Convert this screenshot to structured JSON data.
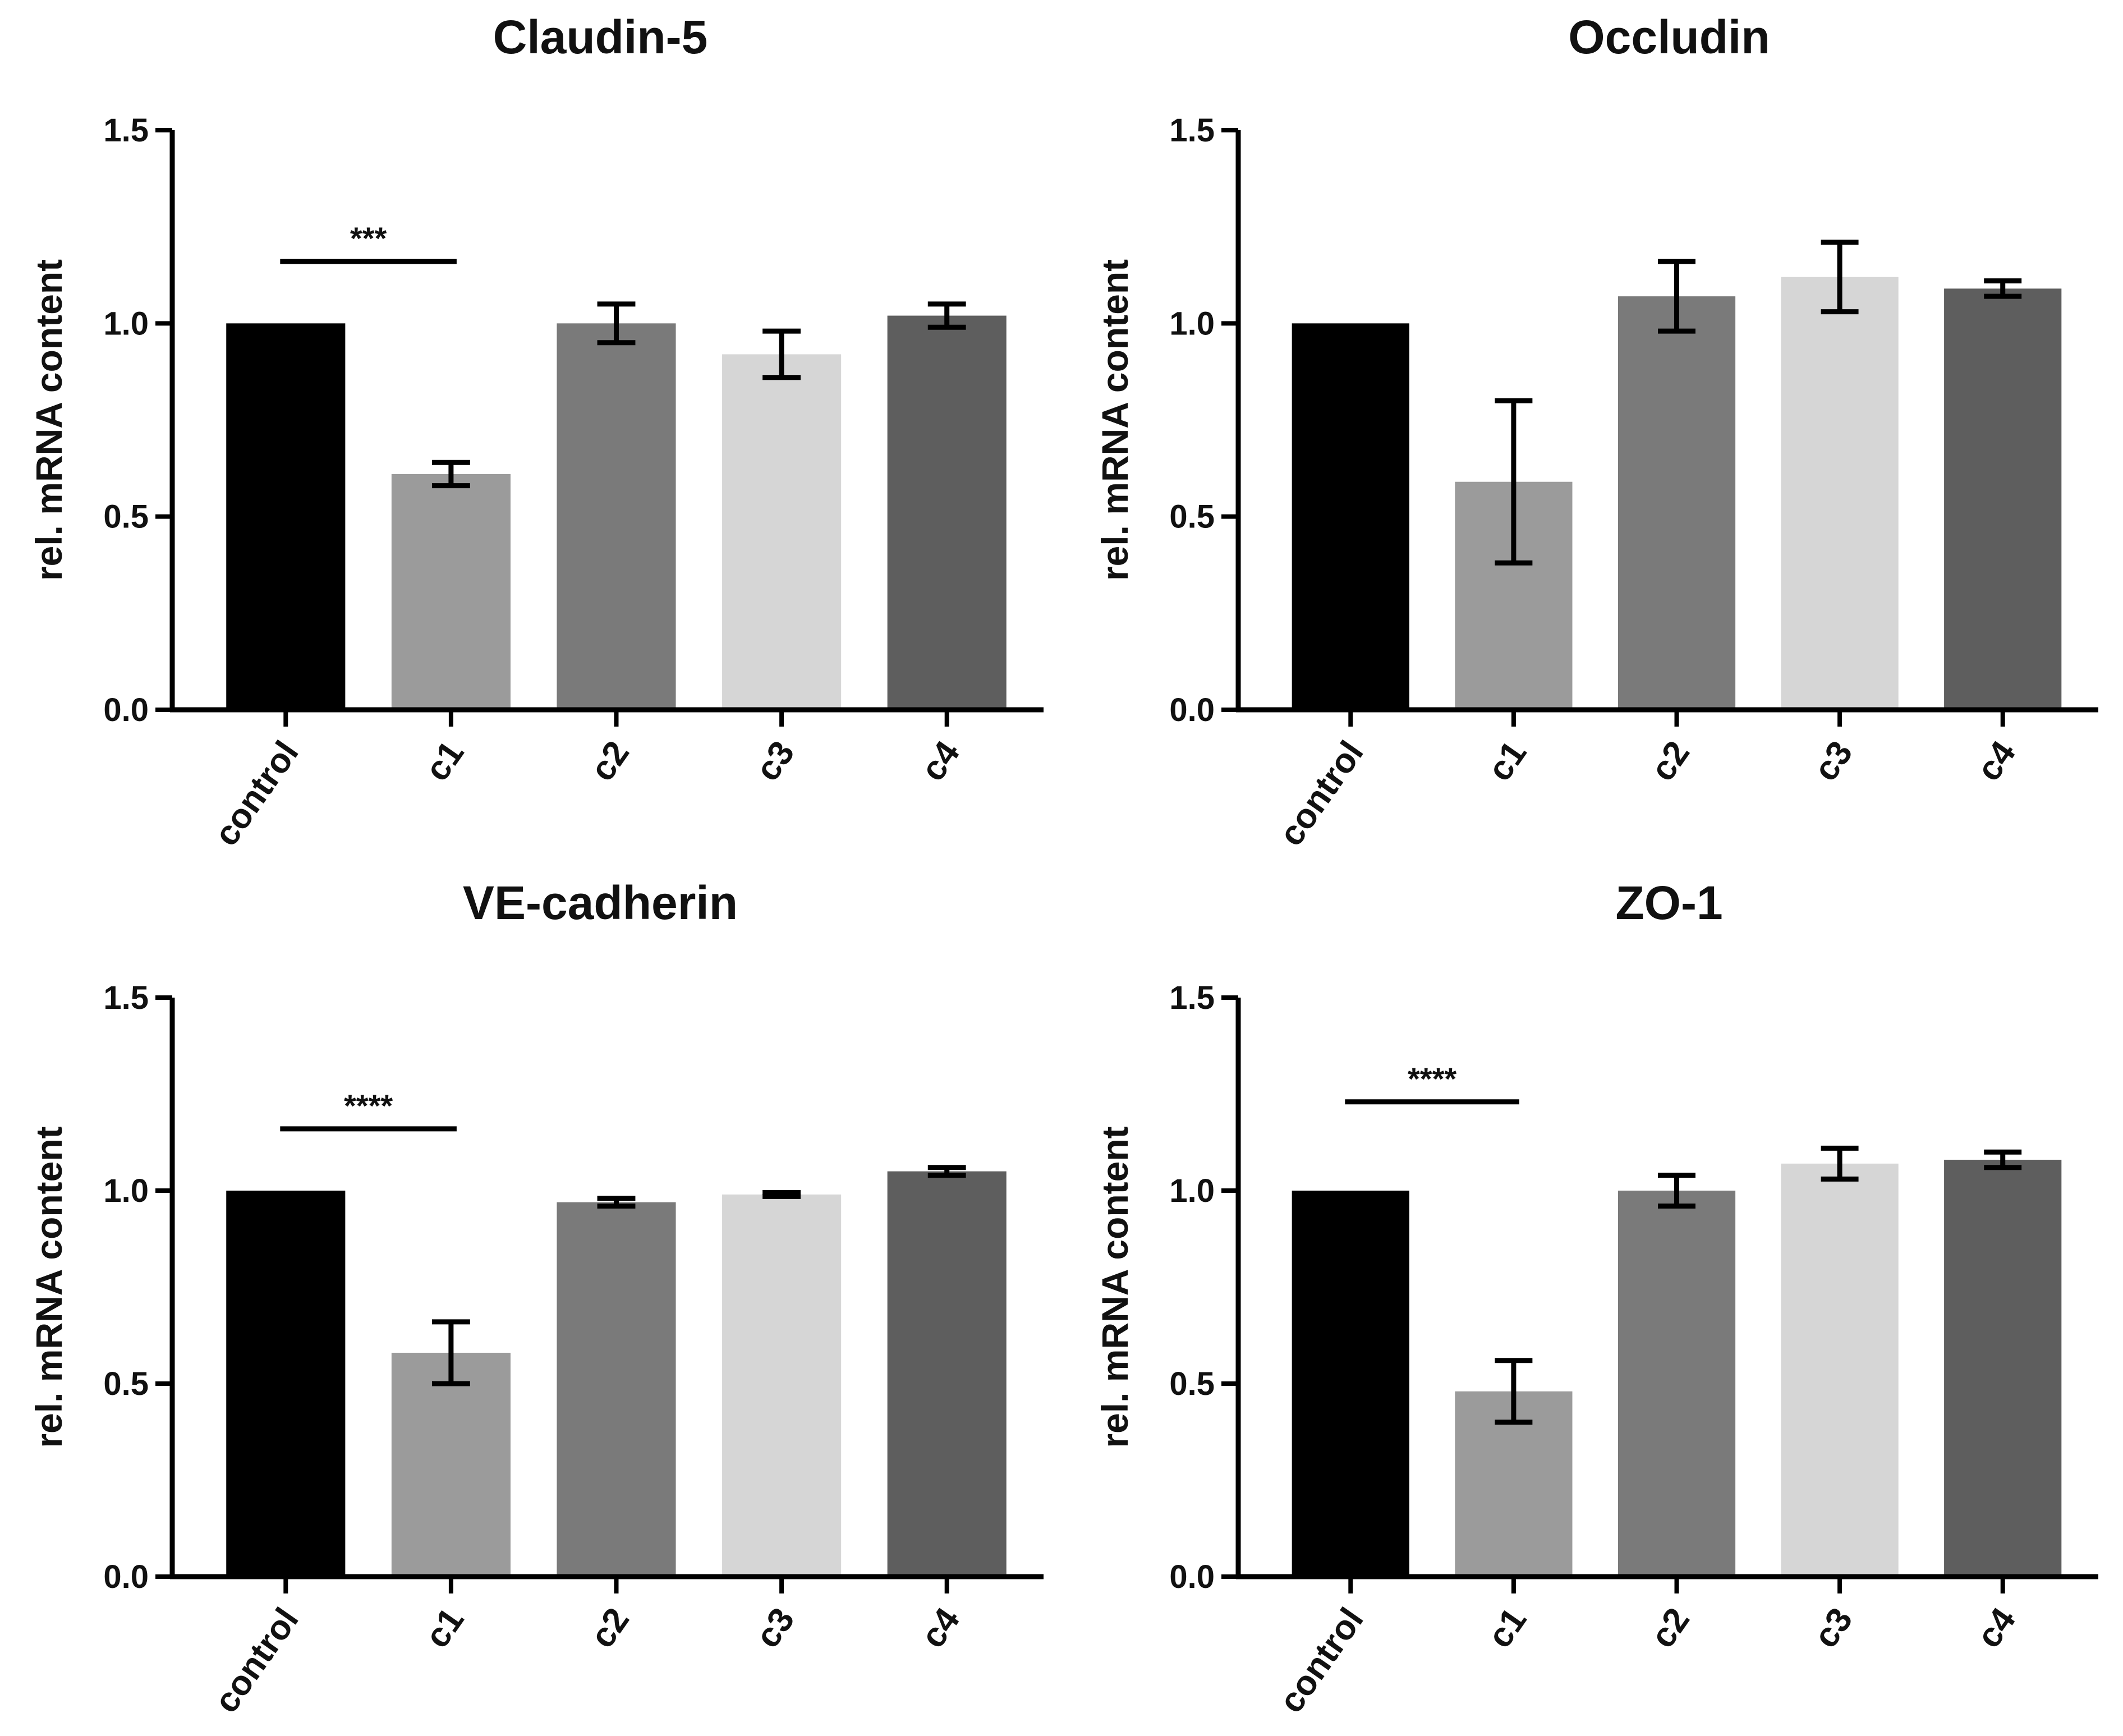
{
  "chart_data": [
    {
      "type": "bar",
      "title": "Claudin-5",
      "xlabel": "",
      "ylabel": "rel. mRNA content",
      "ylim": [
        0,
        1.5
      ],
      "yticks": [
        "0.0",
        "0.5",
        "1.0",
        "1.5"
      ],
      "categories": [
        "control",
        "c1",
        "c2",
        "c3",
        "c4"
      ],
      "values": [
        1.0,
        0.61,
        1.0,
        0.92,
        1.02
      ],
      "errors": [
        0,
        0.03,
        0.05,
        0.06,
        0.03
      ],
      "colors": [
        "#000000",
        "#9b9b9b",
        "#7a7a7a",
        "#d6d6d6",
        "#5e5e5e"
      ],
      "significance": [
        {
          "from": 0,
          "to": 1,
          "label": "***",
          "y": 1.16
        }
      ]
    },
    {
      "type": "bar",
      "title": "Occludin",
      "xlabel": "",
      "ylabel": "rel. mRNA content",
      "ylim": [
        0,
        1.5
      ],
      "yticks": [
        "0.0",
        "0.5",
        "1.0",
        "1.5"
      ],
      "categories": [
        "control",
        "c1",
        "c2",
        "c3",
        "c4"
      ],
      "values": [
        1.0,
        0.59,
        1.07,
        1.12,
        1.09
      ],
      "errors": [
        0,
        0.21,
        0.09,
        0.09,
        0.02
      ],
      "colors": [
        "#000000",
        "#9b9b9b",
        "#7a7a7a",
        "#d6d6d6",
        "#5e5e5e"
      ],
      "significance": []
    },
    {
      "type": "bar",
      "title": "VE-cadherin",
      "xlabel": "",
      "ylabel": "rel. mRNA content",
      "ylim": [
        0,
        1.5
      ],
      "yticks": [
        "0.0",
        "0.5",
        "1.0",
        "1.5"
      ],
      "categories": [
        "control",
        "c1",
        "c2",
        "c3",
        "c4"
      ],
      "values": [
        1.0,
        0.58,
        0.97,
        0.99,
        1.05
      ],
      "errors": [
        0,
        0.08,
        0.01,
        0.005,
        0.01
      ],
      "colors": [
        "#000000",
        "#9b9b9b",
        "#7a7a7a",
        "#d6d6d6",
        "#5e5e5e"
      ],
      "significance": [
        {
          "from": 0,
          "to": 1,
          "label": "****",
          "y": 1.16
        }
      ]
    },
    {
      "type": "bar",
      "title": "ZO-1",
      "xlabel": "",
      "ylabel": "rel. mRNA content",
      "ylim": [
        0,
        1.5
      ],
      "yticks": [
        "0.0",
        "0.5",
        "1.0",
        "1.5"
      ],
      "categories": [
        "control",
        "c1",
        "c2",
        "c3",
        "c4"
      ],
      "values": [
        1.0,
        0.48,
        1.0,
        1.07,
        1.08
      ],
      "errors": [
        0,
        0.08,
        0.04,
        0.04,
        0.02
      ],
      "colors": [
        "#000000",
        "#9b9b9b",
        "#7a7a7a",
        "#d6d6d6",
        "#5e5e5e"
      ],
      "significance": [
        {
          "from": 0,
          "to": 1,
          "label": "****",
          "y": 1.23
        }
      ]
    }
  ]
}
